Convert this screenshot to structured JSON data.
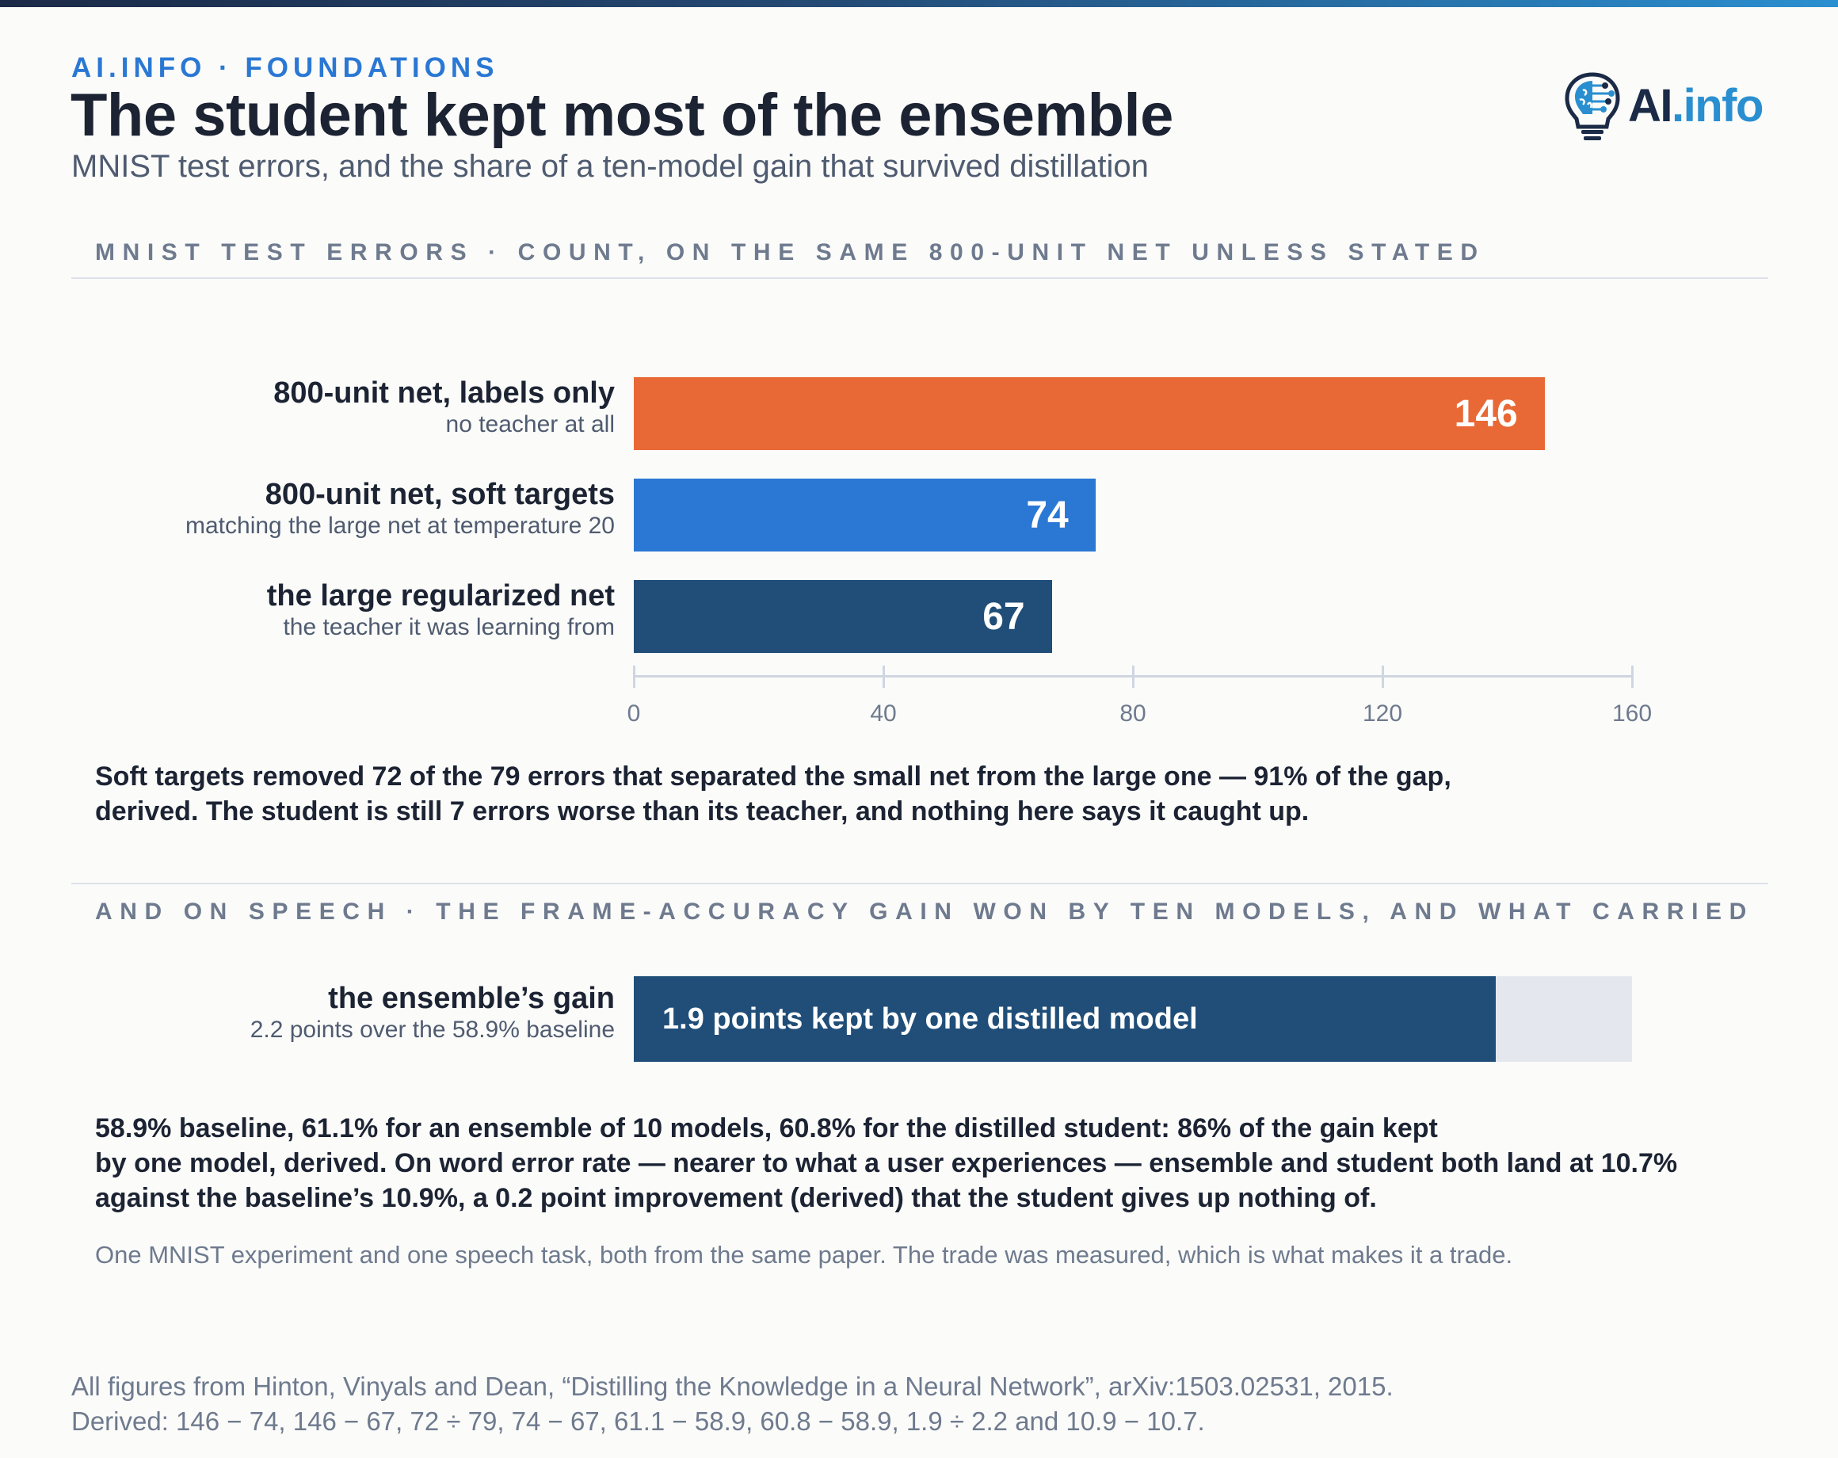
{
  "header": {
    "kicker": "AI.INFO · FOUNDATIONS",
    "title": "The student kept most of the ensemble",
    "subtitle": "MNIST test errors, and the share of a ten-model gain that survived distillation",
    "logo_ai": "AI",
    "logo_info": ".info"
  },
  "colors": {
    "labels_only": "#e86935",
    "soft_targets": "#2a78d4",
    "large_net": "#204e78",
    "track": "#e4e8ee"
  },
  "chart_data": [
    {
      "type": "bar",
      "orientation": "horizontal",
      "title": "MNIST TEST ERRORS · COUNT, ON THE SAME 800-UNIT NET UNLESS STATED",
      "categories": [
        "800-unit net, labels only",
        "800-unit net, soft targets",
        "the large regularized net"
      ],
      "sublabels": [
        "no teacher at all",
        "matching the large net at temperature 20",
        "the teacher it was learning from"
      ],
      "values": [
        146,
        74,
        67
      ],
      "value_labels": [
        "146",
        "74",
        "67"
      ],
      "xlim": [
        0,
        160
      ],
      "ticks": [
        0,
        40,
        80,
        120,
        160
      ],
      "tick_labels": [
        "0",
        "40",
        "80",
        "120",
        "160"
      ],
      "grid": false
    },
    {
      "type": "bar",
      "orientation": "horizontal",
      "title": "AND ON SPEECH · THE FRAME-ACCURACY GAIN WON BY TEN MODELS, AND WHAT CARRIED",
      "categories": [
        "the ensemble’s gain"
      ],
      "sublabels": [
        "2.2 points over the 58.9% baseline"
      ],
      "total": 2.2,
      "kept": 1.9,
      "kept_label": "1.9 points kept by one distilled model"
    }
  ],
  "notes": {
    "mnist": [
      "Soft targets removed 72 of the 79 errors that separated the small net from the large one — 91% of the gap,",
      "derived. The student is still 7 errors worse than its teacher, and nothing here says it caught up."
    ],
    "speech": [
      "58.9% baseline, 61.1% for an ensemble of 10 models, 60.8% for the distilled student: 86% of the gain kept",
      "by one model, derived. On word error rate — nearer to what a user experiences — ensemble and student both land at 10.7%",
      "against the baseline’s 10.9%, a 0.2 point improvement (derived) that the student gives up nothing of."
    ],
    "caveat": "One MNIST experiment and one speech task, both from the same paper. The trade was measured, which is what makes it a trade."
  },
  "source": [
    "All figures from Hinton, Vinyals and Dean, “Distilling the Knowledge in a Neural Network”, arXiv:1503.02531, 2015.",
    "Derived: 146 − 74, 146 − 67, 72 ÷ 79, 74 − 67, 61.1 − 58.9, 60.8 − 58.9, 1.9 ÷ 2.2 and 10.9 − 10.7."
  ]
}
